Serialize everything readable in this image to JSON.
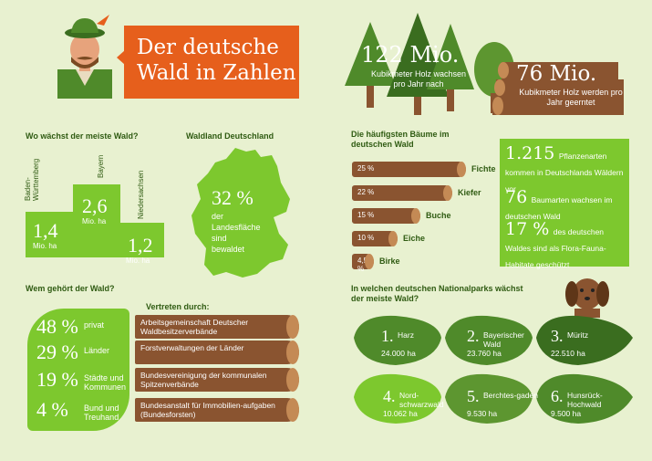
{
  "title": {
    "line1": "Der deutsche",
    "line2": "Wald in Zahlen"
  },
  "growth": {
    "value": "122 Mio.",
    "text": "Kubikmeter Holz wachsen pro Jahr nach"
  },
  "harvest": {
    "value": "76 Mio.",
    "text": "Kubikmeter Holz werden pro Jahr geerntet"
  },
  "podium": {
    "heading": "Wo wächst der meiste Wald?",
    "left": {
      "state": "Baden-Württemberg",
      "value": "1,4",
      "unit": "Mio. ha"
    },
    "center": {
      "state": "Bayern",
      "value": "2,6",
      "unit": "Mio. ha"
    },
    "right": {
      "state": "Niedersachsen",
      "value": "1,2",
      "unit": "Mio. ha"
    }
  },
  "germany": {
    "heading": "Waldland Deutschland",
    "value": "32 %",
    "text": "der Landesfläche sind bewaldet"
  },
  "trees": {
    "heading": "Die häufigsten Bäume im deutschen Wald",
    "items": [
      {
        "pct": "25 %",
        "name": "Fichte",
        "share": 25
      },
      {
        "pct": "22 %",
        "name": "Kiefer",
        "share": 22
      },
      {
        "pct": "15 %",
        "name": "Buche",
        "share": 15
      },
      {
        "pct": "10 %",
        "name": "Eiche",
        "share": 10
      },
      {
        "pct": "4,5 %",
        "name": "Birke",
        "share": 4.5
      }
    ]
  },
  "species": {
    "a_num": "1.215",
    "a_text": "Pflanzenarten kommen in Deutschlands Wäldern vor",
    "b_num": "76",
    "b_text": "Baumarten wachsen im deutschen Wald",
    "c_num": "17 %",
    "c_text": "des deutschen Waldes sind als Flora-Fauna-Habitate geschützt"
  },
  "ownership": {
    "heading": "Wem gehört der Wald?",
    "rep_heading": "Vertreten durch:",
    "rows": [
      {
        "pct": "48 %",
        "label": "privat",
        "rep": "Arbeitsgemeinschaft Deutscher Waldbesitzerverbände"
      },
      {
        "pct": "29 %",
        "label": "Länder",
        "rep": "Forstverwaltungen der Länder"
      },
      {
        "pct": "19 %",
        "label": "Städte und Kommunen",
        "rep": "Bundesvereinigung der kommunalen Spitzenverbände"
      },
      {
        "pct": "4 %",
        "label": "Bund und Treuhand",
        "rep": "Bundesanstalt für Immobilien-aufgaben (Bundesforsten)"
      }
    ]
  },
  "parks": {
    "heading": "In welchen deutschen Nationalparks wächst der meiste Wald?",
    "items": [
      {
        "num": "1.",
        "name": "Harz",
        "area": "24.000 ha"
      },
      {
        "num": "2.",
        "name": "Bayerischer Wald",
        "area": "23.760 ha"
      },
      {
        "num": "3.",
        "name": "Müritz",
        "area": "22.510 ha"
      },
      {
        "num": "4.",
        "name": "Nord-schwarzwald",
        "area": "10.062 ha"
      },
      {
        "num": "5.",
        "name": "Berchtes-gaden",
        "area": "9.530 ha"
      },
      {
        "num": "6.",
        "name": "Hunsrück-Hochwald",
        "area": "9.500 ha"
      }
    ]
  }
}
